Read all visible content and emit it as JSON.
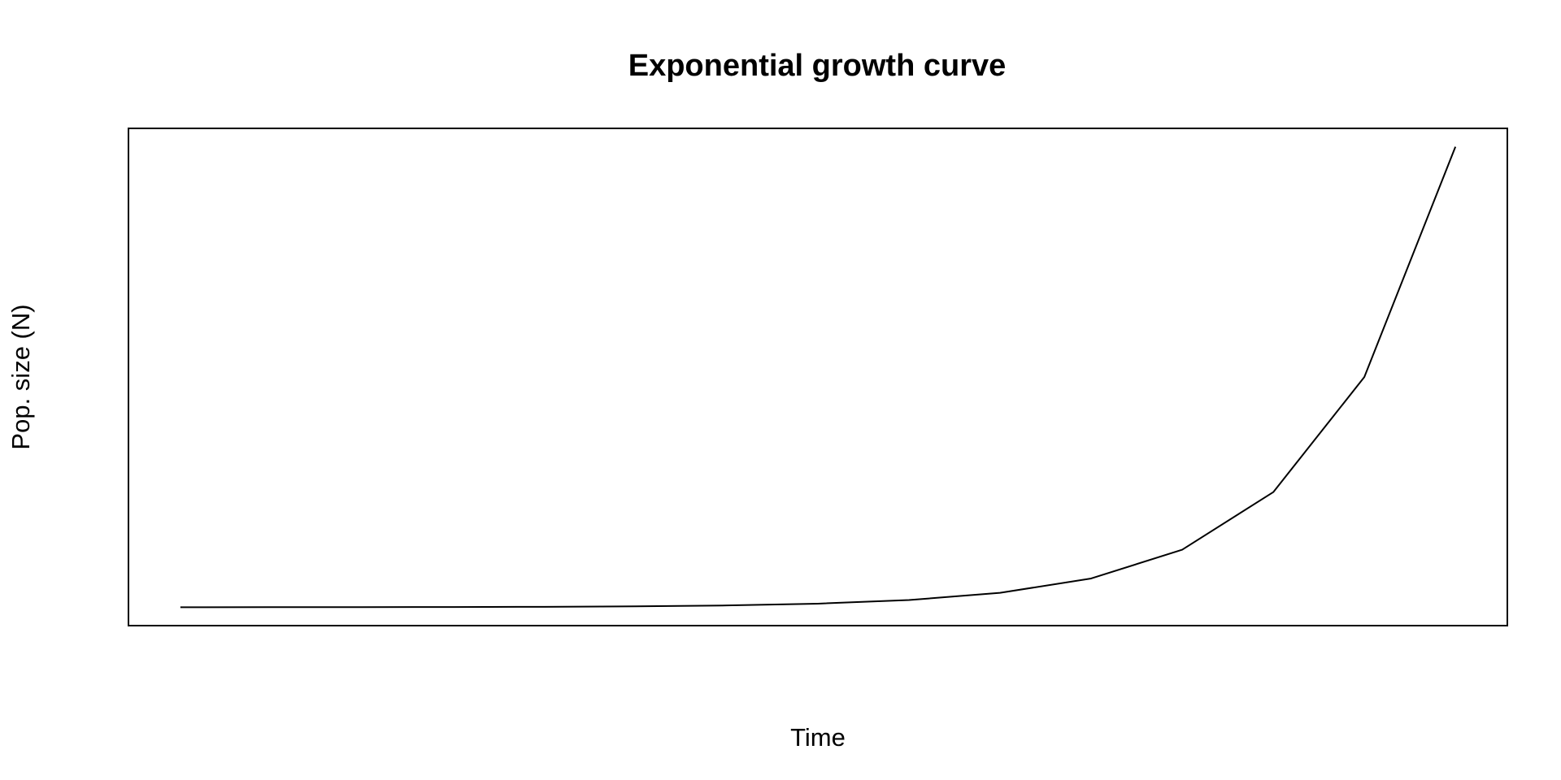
{
  "chart_data": {
    "type": "line",
    "title": "Exponential growth curve",
    "xlabel": "Time",
    "ylabel": "Pop. size (N)",
    "x": [
      1,
      2,
      3,
      4,
      5,
      6,
      7,
      8,
      9,
      10,
      11,
      12,
      13,
      14,
      15
    ],
    "series": [
      {
        "name": "N",
        "values": [
          1,
          2,
          4,
          8,
          16,
          32,
          64,
          128,
          256,
          512,
          1024,
          2048,
          4096,
          8192,
          16384
        ]
      }
    ],
    "xlim": [
      0.43,
      15.57
    ],
    "ylim": [
      -654,
      17039
    ],
    "axes_shown": false,
    "grid": false,
    "colors": {
      "line": "#000000",
      "frame": "#000000",
      "background": "#ffffff"
    }
  }
}
